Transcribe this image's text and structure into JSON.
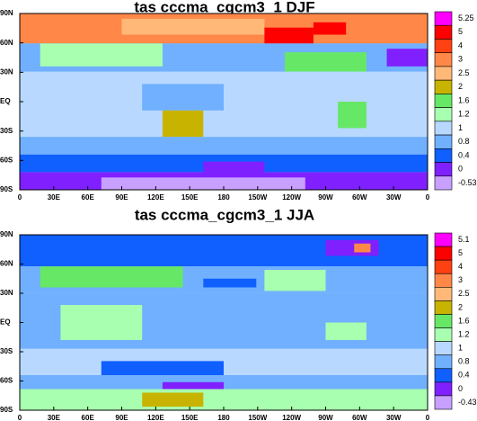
{
  "maps": [
    {
      "title": "tas cccma_cgcm3_1 DJF",
      "y_labels": [
        "90N",
        "60N",
        "30N",
        "EQ",
        "30S",
        "60S",
        "90S"
      ],
      "x_labels": [
        "0",
        "30E",
        "60E",
        "90E",
        "120E",
        "150E",
        "180",
        "150W",
        "120W",
        "90W",
        "60W",
        "30W",
        "0"
      ],
      "colorbar": {
        "labels": [
          "5.25",
          "5",
          "4",
          "3",
          "2.5",
          "2",
          "1.6",
          "1.2",
          "1",
          "0.8",
          "0.4",
          "0",
          "-0.53"
        ],
        "colors": [
          "#ff00ff",
          "#ff0000",
          "#ff4010",
          "#ff8848",
          "#ffb878",
          "#c8b400",
          "#66e866",
          "#a8ffb0",
          "#b8d8ff",
          "#70b0ff",
          "#1060ff",
          "#8020ff",
          "#c8a0ff"
        ]
      }
    },
    {
      "title": "tas cccma_cgcm3_1 JJA",
      "y_labels": [
        "90N",
        "60N",
        "30N",
        "EQ",
        "30S",
        "60S",
        "90S"
      ],
      "x_labels": [
        "0",
        "30E",
        "60E",
        "90E",
        "120E",
        "150E",
        "180",
        "150W",
        "120W",
        "90W",
        "60W",
        "30W",
        "0"
      ],
      "colorbar": {
        "labels": [
          "5.1",
          "5",
          "4",
          "3",
          "2.5",
          "2",
          "1.6",
          "1.2",
          "1",
          "0.8",
          "0.4",
          "0",
          "-0.43"
        ],
        "colors": [
          "#ff00ff",
          "#ff0000",
          "#ff4010",
          "#ff8848",
          "#ffb878",
          "#c8b400",
          "#66e866",
          "#a8ffb0",
          "#b8d8ff",
          "#70b0ff",
          "#1060ff",
          "#8020ff",
          "#c8a0ff"
        ]
      }
    }
  ]
}
